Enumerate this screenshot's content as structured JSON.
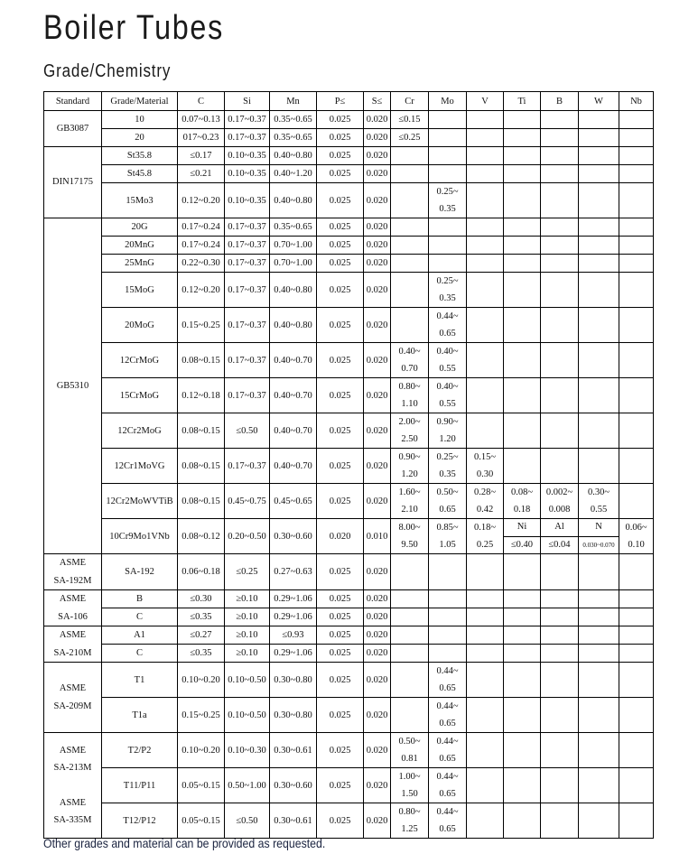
{
  "title": "Boiler Tubes",
  "subtitle": "Grade/Chemistry",
  "footnote": "Other grades and material can be provided as requested.",
  "table": {
    "headers": [
      "Standard",
      "Grade/Material",
      "C",
      "Si",
      "Mn",
      "P≤",
      "S≤",
      "Cr",
      "Mo",
      "V",
      "Ti",
      "B",
      "W",
      "Nb"
    ],
    "groups": [
      {
        "standard": [
          "GB3087"
        ],
        "rows": [
          {
            "grade": "10",
            "cells": [
              "0.07~0.13",
              "0.17~0.37",
              "0.35~0.65",
              "0.025",
              "0.020",
              "≤0.15",
              "",
              "",
              "",
              "",
              "",
              ""
            ]
          },
          {
            "grade": "20",
            "cells": [
              "017~0.23",
              "0.17~0.37",
              "0.35~0.65",
              "0.025",
              "0.020",
              "≤0.25",
              "",
              "",
              "",
              "",
              "",
              ""
            ]
          }
        ]
      },
      {
        "standard": [
          "DIN17175"
        ],
        "rows": [
          {
            "grade": "St35.8",
            "cells": [
              "≤0.17",
              "0.10~0.35",
              "0.40~0.80",
              "0.025",
              "0.020",
              "",
              "",
              "",
              "",
              "",
              "",
              ""
            ]
          },
          {
            "grade": "St45.8",
            "cells": [
              "≤0.21",
              "0.10~0.35",
              "0.40~1.20",
              "0.025",
              "0.020",
              "",
              "",
              "",
              "",
              "",
              "",
              ""
            ]
          },
          {
            "grade": "15Mo3",
            "cells": [
              "0.12~0.20",
              "0.10~0.35",
              "0.40~0.80",
              "0.025",
              "0.020",
              "",
              "0.25~\n0.35",
              "",
              "",
              "",
              "",
              ""
            ]
          }
        ]
      },
      {
        "standard": [
          "GB5310"
        ],
        "rows": [
          {
            "grade": "20G",
            "cells": [
              "0.17~0.24",
              "0.17~0.37",
              "0.35~0.65",
              "0.025",
              "0.020",
              "",
              "",
              "",
              "",
              "",
              "",
              ""
            ]
          },
          {
            "grade": "20MnG",
            "cells": [
              "0.17~0.24",
              "0.17~0.37",
              "0.70~1.00",
              "0.025",
              "0.020",
              "",
              "",
              "",
              "",
              "",
              "",
              ""
            ]
          },
          {
            "grade": "25MnG",
            "cells": [
              "0.22~0.30",
              "0.17~0.37",
              "0.70~1.00",
              "0.025",
              "0.020",
              "",
              "",
              "",
              "",
              "",
              "",
              ""
            ]
          },
          {
            "grade": "15MoG",
            "cells": [
              "0.12~0.20",
              "0.17~0.37",
              "0.40~0.80",
              "0.025",
              "0.020",
              "",
              "0.25~\n0.35",
              "",
              "",
              "",
              "",
              ""
            ]
          },
          {
            "grade": "20MoG",
            "cells": [
              "0.15~0.25",
              "0.17~0.37",
              "0.40~0.80",
              "0.025",
              "0.020",
              "",
              "0.44~\n0.65",
              "",
              "",
              "",
              "",
              ""
            ]
          },
          {
            "grade": "12CrMoG",
            "cells": [
              "0.08~0.15",
              "0.17~0.37",
              "0.40~0.70",
              "0.025",
              "0.020",
              "0.40~\n0.70",
              "0.40~\n0.55",
              "",
              "",
              "",
              "",
              ""
            ]
          },
          {
            "grade": "15CrMoG",
            "cells": [
              "0.12~0.18",
              "0.17~0.37",
              "0.40~0.70",
              "0.025",
              "0.020",
              "0.80~\n1.10",
              "0.40~\n0.55",
              "",
              "",
              "",
              "",
              ""
            ]
          },
          {
            "grade": "12Cr2MoG",
            "cells": [
              "0.08~0.15",
              "≤0.50",
              "0.40~0.70",
              "0.025",
              "0.020",
              "2.00~\n2.50",
              "0.90~\n1.20",
              "",
              "",
              "",
              "",
              ""
            ]
          },
          {
            "grade": "12Cr1MoVG",
            "cells": [
              "0.08~0.15",
              "0.17~0.37",
              "0.40~0.70",
              "0.025",
              "0.020",
              "0.90~\n1.20",
              "0.25~\n0.35",
              "0.15~\n0.30",
              "",
              "",
              "",
              ""
            ]
          },
          {
            "grade": "12Cr2MoWVTiB",
            "cells": [
              "0.08~0.15",
              "0.45~0.75",
              "0.45~0.65",
              "0.025",
              "0.020",
              "1.60~\n2.10",
              "0.50~\n0.65",
              "0.28~\n0.42",
              "0.08~\n0.18",
              "0.002~\n0.008",
              "0.30~\n0.55",
              ""
            ]
          },
          {
            "grade": "10Cr9Mo1VNb",
            "cells": [
              "0.08~0.12",
              "0.20~0.50",
              "0.30~0.60",
              "0.020",
              "0.010",
              "8.00~\n9.50",
              "0.85~\n1.05",
              "0.18~\n0.25",
              {
                "top": "Ni",
                "bottom": "≤0.40"
              },
              {
                "top": "Al",
                "bottom": "≤0.04"
              },
              {
                "top": "N",
                "bottom": "0.030~0.070"
              },
              "0.06~\n0.10"
            ]
          }
        ]
      },
      {
        "standard": [
          "ASME\nSA-192M"
        ],
        "rows": [
          {
            "grade": "SA-192",
            "cells": [
              "0.06~0.18",
              "≤0.25",
              "0.27~0.63",
              "0.025",
              "0.020",
              "",
              "",
              "",
              "",
              "",
              "",
              ""
            ]
          }
        ]
      },
      {
        "standard": [
          "ASME\nSA-106"
        ],
        "rows": [
          {
            "grade": "B",
            "cells": [
              "≤0.30",
              "≥0.10",
              "0.29~1.06",
              "0.025",
              "0.020",
              "",
              "",
              "",
              "",
              "",
              "",
              ""
            ]
          },
          {
            "grade": "C",
            "cells": [
              "≤0.35",
              "≥0.10",
              "0.29~1.06",
              "0.025",
              "0.020",
              "",
              "",
              "",
              "",
              "",
              "",
              ""
            ]
          }
        ]
      },
      {
        "standard": [
          "ASME\nSA-210M"
        ],
        "rows": [
          {
            "grade": "A1",
            "cells": [
              "≤0.27",
              "≥0.10",
              "≤0.93",
              "0.025",
              "0.020",
              "",
              "",
              "",
              "",
              "",
              "",
              ""
            ]
          },
          {
            "grade": "C",
            "cells": [
              "≤0.35",
              "≥0.10",
              "0.29~1.06",
              "0.025",
              "0.020",
              "",
              "",
              "",
              "",
              "",
              "",
              ""
            ]
          }
        ]
      },
      {
        "standard": [
          "ASME\nSA-209M"
        ],
        "rows": [
          {
            "grade": "T1",
            "cells": [
              "0.10~0.20",
              "0.10~0.50",
              "0.30~0.80",
              "0.025",
              "0.020",
              "",
              "0.44~\n0.65",
              "",
              "",
              "",
              "",
              ""
            ]
          },
          {
            "grade": "T1a",
            "cells": [
              "0.15~0.25",
              "0.10~0.50",
              "0.30~0.80",
              "0.025",
              "0.020",
              "",
              "0.44~\n0.65",
              "",
              "",
              "",
              "",
              ""
            ]
          }
        ]
      },
      {
        "standard": [
          "ASME\nSA-213M",
          "ASME\nSA-335M"
        ],
        "rows": [
          {
            "grade": "T2/P2",
            "cells": [
              "0.10~0.20",
              "0.10~0.30",
              "0.30~0.61",
              "0.025",
              "0.020",
              "0.50~\n0.81",
              "0.44~\n0.65",
              "",
              "",
              "",
              "",
              ""
            ]
          },
          {
            "grade": "T11/P11",
            "cells": [
              "0.05~0.15",
              "0.50~1.00",
              "0.30~0.60",
              "0.025",
              "0.020",
              "1.00~\n1.50",
              "0.44~\n0.65",
              "",
              "",
              "",
              "",
              ""
            ]
          },
          {
            "grade": "T12/P12",
            "cells": [
              "0.05~0.15",
              "≤0.50",
              "0.30~0.61",
              "0.025",
              "0.020",
              "0.80~\n1.25",
              "0.44~\n0.65",
              "",
              "",
              "",
              "",
              ""
            ]
          }
        ]
      }
    ]
  }
}
